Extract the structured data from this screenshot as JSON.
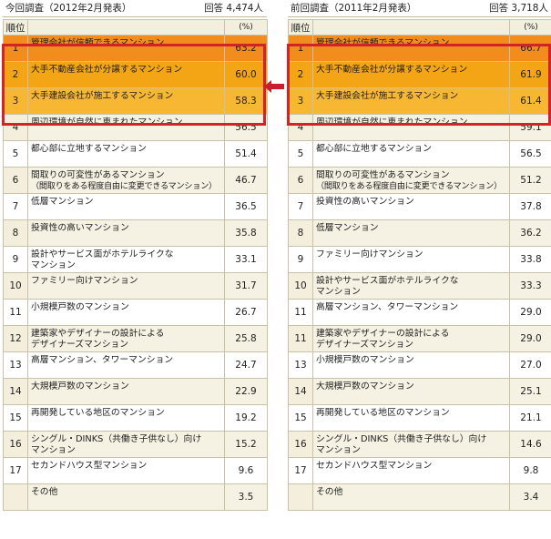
{
  "left": {
    "title": "今回調査（2012年2月発表）",
    "count": "回答 4,474人",
    "header_rank": "順位",
    "header_pct": "(%)",
    "rows": [
      {
        "rank": "1",
        "line1": "管理会社が信頼できるマンション",
        "line2": "",
        "pct": "63.2"
      },
      {
        "rank": "2",
        "line1": "大手不動産会社が分譲するマンション",
        "line2": "",
        "pct": "60.0"
      },
      {
        "rank": "3",
        "line1": "大手建設会社が施工するマンション",
        "line2": "",
        "pct": "58.3"
      },
      {
        "rank": "4",
        "line1": "周辺環境が自然に恵まれたマンション",
        "line2": "",
        "pct": "56.5"
      },
      {
        "rank": "5",
        "line1": "都心部に立地するマンション",
        "line2": "",
        "pct": "51.4"
      },
      {
        "rank": "6",
        "line1": "間取りの可変性があるマンション",
        "line2": "（間取りをある程度自由に変更できるマンション）",
        "pct": "46.7"
      },
      {
        "rank": "7",
        "line1": "低層マンション",
        "line2": "",
        "pct": "36.5"
      },
      {
        "rank": "8",
        "line1": "投資性の高いマンション",
        "line2": "",
        "pct": "35.8"
      },
      {
        "rank": "9",
        "line1": "設計やサービス面がホテルライクな",
        "line2": "マンション",
        "pct": "33.1"
      },
      {
        "rank": "10",
        "line1": "ファミリー向けマンション",
        "line2": "",
        "pct": "31.7"
      },
      {
        "rank": "11",
        "line1": "小規模戸数のマンション",
        "line2": "",
        "pct": "26.7"
      },
      {
        "rank": "12",
        "line1": "建築家やデザイナーの設計による",
        "line2": "デザイナーズマンション",
        "pct": "25.8"
      },
      {
        "rank": "13",
        "line1": "高層マンション、タワーマンション",
        "line2": "",
        "pct": "24.7"
      },
      {
        "rank": "14",
        "line1": "大規模戸数のマンション",
        "line2": "",
        "pct": "22.9"
      },
      {
        "rank": "15",
        "line1": "再開発している地区のマンション",
        "line2": "",
        "pct": "19.2"
      },
      {
        "rank": "16",
        "line1": "シングル・DINKS（共働き子供なし）向け",
        "line2": "マンション",
        "pct": "15.2"
      },
      {
        "rank": "17",
        "line1": "セカンドハウス型マンション",
        "line2": "",
        "pct": "9.6"
      },
      {
        "rank": "",
        "line1": "その他",
        "line2": "",
        "pct": "3.5"
      }
    ]
  },
  "right": {
    "title": "前回調査（2011年2月発表）",
    "count": "回答 3,718人",
    "header_rank": "順位",
    "header_pct": "(%)",
    "rows": [
      {
        "rank": "1",
        "line1": "管理会社が信頼できるマンション",
        "line2": "",
        "pct": "66.7"
      },
      {
        "rank": "2",
        "line1": "大手不動産会社が分譲するマンション",
        "line2": "",
        "pct": "61.9"
      },
      {
        "rank": "3",
        "line1": "大手建設会社が施工するマンション",
        "line2": "",
        "pct": "61.4"
      },
      {
        "rank": "4",
        "line1": "周辺環境が自然に恵まれたマンション",
        "line2": "",
        "pct": "59.1"
      },
      {
        "rank": "5",
        "line1": "都心部に立地するマンション",
        "line2": "",
        "pct": "56.5"
      },
      {
        "rank": "6",
        "line1": "間取りの可変性があるマンション",
        "line2": "（間取りをある程度自由に変更できるマンション）",
        "pct": "51.2"
      },
      {
        "rank": "7",
        "line1": "投資性の高いマンション",
        "line2": "",
        "pct": "37.8"
      },
      {
        "rank": "8",
        "line1": "低層マンション",
        "line2": "",
        "pct": "36.2"
      },
      {
        "rank": "9",
        "line1": "ファミリー向けマンション",
        "line2": "",
        "pct": "33.8"
      },
      {
        "rank": "10",
        "line1": "設計やサービス面がホテルライクな",
        "line2": "マンション",
        "pct": "33.3"
      },
      {
        "rank": "11",
        "line1": "高層マンション、タワーマンション",
        "line2": "",
        "pct": "29.0"
      },
      {
        "rank": "11",
        "line1": "建築家やデザイナーの設計による",
        "line2": "デザイナーズマンション",
        "pct": "29.0"
      },
      {
        "rank": "13",
        "line1": "小規模戸数のマンション",
        "line2": "",
        "pct": "27.0"
      },
      {
        "rank": "14",
        "line1": "大規模戸数のマンション",
        "line2": "",
        "pct": "25.1"
      },
      {
        "rank": "15",
        "line1": "再開発している地区のマンション",
        "line2": "",
        "pct": "21.1"
      },
      {
        "rank": "16",
        "line1": "シングル・DINKS（共働き子供なし）向け",
        "line2": "マンション",
        "pct": "14.6"
      },
      {
        "rank": "17",
        "line1": "セカンドハウス型マンション",
        "line2": "",
        "pct": "9.8"
      },
      {
        "rank": "",
        "line1": "その他",
        "line2": "",
        "pct": "3.4"
      }
    ]
  },
  "colors": {
    "top1": "#f28c1c",
    "top2": "#f4a516",
    "top3": "#f7b733",
    "highlight_border": "#d2232a",
    "arrow": "#c8202a",
    "band": "#f4efdc"
  },
  "icons": {
    "compare_arrow": "left-arrow-icon"
  }
}
